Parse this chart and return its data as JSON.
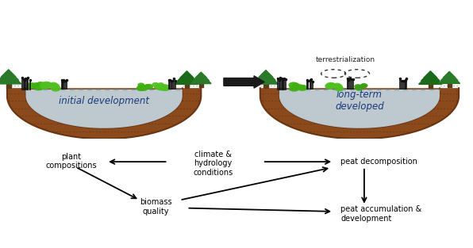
{
  "fig_width": 5.96,
  "fig_height": 3.13,
  "dpi": 100,
  "bg_color": "#ffffff",
  "soil_outer": "#8B4A1C",
  "soil_inner": "#6B3410",
  "soil_line": "#4a2008",
  "water_color": "#c8dff0",
  "water_edge": "#7aafc8",
  "green_dark": "#1a6b00",
  "green_mid": "#3a9a10",
  "green_light": "#5cbf30",
  "black_veg": "#1a1a1a",
  "tree_trunk": "#5c3a1a",
  "label_initial": "initial development",
  "label_longterm": "long-term\ndeveloped",
  "label_terr": "terrestrialization",
  "label_plant": "plant\ncompositions",
  "label_climate": "climate &\nhydrology\nconditions",
  "label_peat_d": "peat decomposition",
  "label_biomass": "biomass\nquality",
  "label_peat_a": "peat accumulation &\ndevelopment",
  "font_size": 7.0,
  "font_size_bowl": 8.5,
  "font_size_terr": 6.5,
  "arrow_lw": 1.3,
  "arrow_ms": 10
}
